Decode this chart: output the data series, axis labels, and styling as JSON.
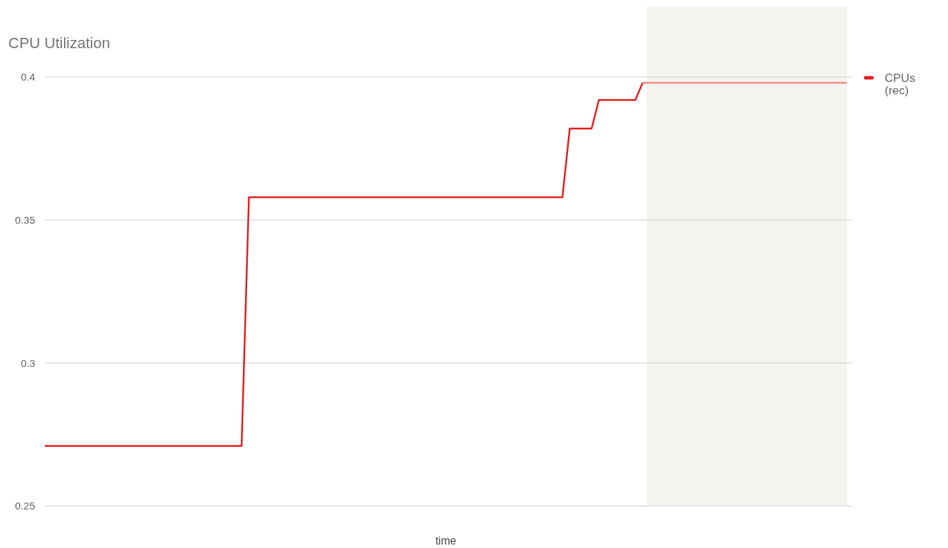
{
  "chart_data": {
    "type": "line",
    "title": "CPU Utilization",
    "xlabel": "time",
    "categories": [
      null,
      null,
      null,
      null,
      null,
      null,
      null,
      null,
      null,
      null,
      null,
      null,
      null,
      null,
      null,
      null,
      null,
      null,
      null,
      null,
      null,
      null,
      null,
      null,
      null,
      null,
      null,
      null,
      null,
      null,
      null,
      null,
      null,
      null,
      null,
      null,
      null,
      null,
      null,
      null,
      null,
      null,
      null,
      null,
      null,
      null,
      null,
      null,
      null,
      null,
      null,
      null,
      null,
      null,
      null,
      null,
      null,
      null,
      null,
      null,
      null,
      null,
      null,
      null,
      null,
      null,
      null,
      null,
      null,
      null,
      null,
      null,
      null,
      null,
      null,
      null,
      null,
      null,
      null,
      null,
      null,
      null,
      null,
      null,
      null,
      null,
      null,
      null,
      null,
      null,
      null,
      null,
      null,
      null,
      null,
      null,
      null,
      null,
      null,
      null,
      null,
      null,
      null,
      null,
      null,
      null,
      null,
      null,
      null,
      null,
      null
    ],
    "ylim": [
      0.25,
      0.4
    ],
    "yticks": [
      0.25,
      0.3,
      0.35,
      0.4
    ],
    "tick_labels": "y",
    "grid": "y",
    "legend": "top right",
    "marker": "none",
    "line_style": "solid",
    "series": [
      {
        "name": "CPUs (rec)",
        "color": "#e31b1b",
        "values": [
          0.271,
          0.271,
          0.271,
          0.271,
          0.271,
          0.271,
          0.271,
          0.271,
          0.271,
          0.271,
          0.271,
          0.271,
          0.271,
          0.271,
          0.271,
          0.271,
          0.271,
          0.271,
          0.271,
          0.271,
          0.271,
          0.271,
          0.271,
          0.271,
          0.271,
          0.271,
          0.271,
          0.271,
          0.358,
          0.358,
          0.358,
          0.358,
          0.358,
          0.358,
          0.358,
          0.358,
          0.358,
          0.358,
          0.358,
          0.358,
          0.358,
          0.358,
          0.358,
          0.358,
          0.358,
          0.358,
          0.358,
          0.358,
          0.358,
          0.358,
          0.358,
          0.358,
          0.358,
          0.358,
          0.358,
          0.358,
          0.358,
          0.358,
          0.358,
          0.358,
          0.358,
          0.358,
          0.358,
          0.358,
          0.358,
          0.358,
          0.358,
          0.358,
          0.358,
          0.358,
          0.358,
          0.358,
          0.382,
          0.382,
          0.382,
          0.382,
          0.392,
          0.392,
          0.392,
          0.392,
          0.392,
          0.392,
          0.398,
          null,
          null,
          null,
          null,
          null,
          null,
          null,
          null,
          null,
          null,
          null,
          null,
          null,
          null,
          null,
          null,
          null,
          null,
          null,
          null,
          null,
          null,
          null,
          null,
          null,
          null,
          null,
          null
        ]
      },
      {
        "color": "#f28b82",
        "values": [
          null,
          null,
          null,
          null,
          null,
          null,
          null,
          null,
          null,
          null,
          null,
          null,
          null,
          null,
          null,
          null,
          null,
          null,
          null,
          null,
          null,
          null,
          null,
          null,
          null,
          null,
          null,
          null,
          null,
          null,
          null,
          null,
          null,
          null,
          null,
          null,
          null,
          null,
          null,
          null,
          null,
          null,
          null,
          null,
          null,
          null,
          null,
          null,
          null,
          null,
          null,
          null,
          null,
          null,
          null,
          null,
          null,
          null,
          null,
          null,
          null,
          null,
          null,
          null,
          null,
          null,
          null,
          null,
          null,
          null,
          null,
          null,
          null,
          null,
          null,
          null,
          null,
          null,
          null,
          null,
          null,
          null,
          0.398,
          0.398,
          0.398,
          0.398,
          0.398,
          0.398,
          0.398,
          0.398,
          0.398,
          0.398,
          0.398,
          0.398,
          0.398,
          0.398,
          0.398,
          0.398,
          0.398,
          0.398,
          0.398,
          0.398,
          0.398,
          0.398,
          0.398,
          0.398,
          0.398,
          0.398,
          0.398,
          0.398,
          0.398
        ]
      }
    ]
  }
}
